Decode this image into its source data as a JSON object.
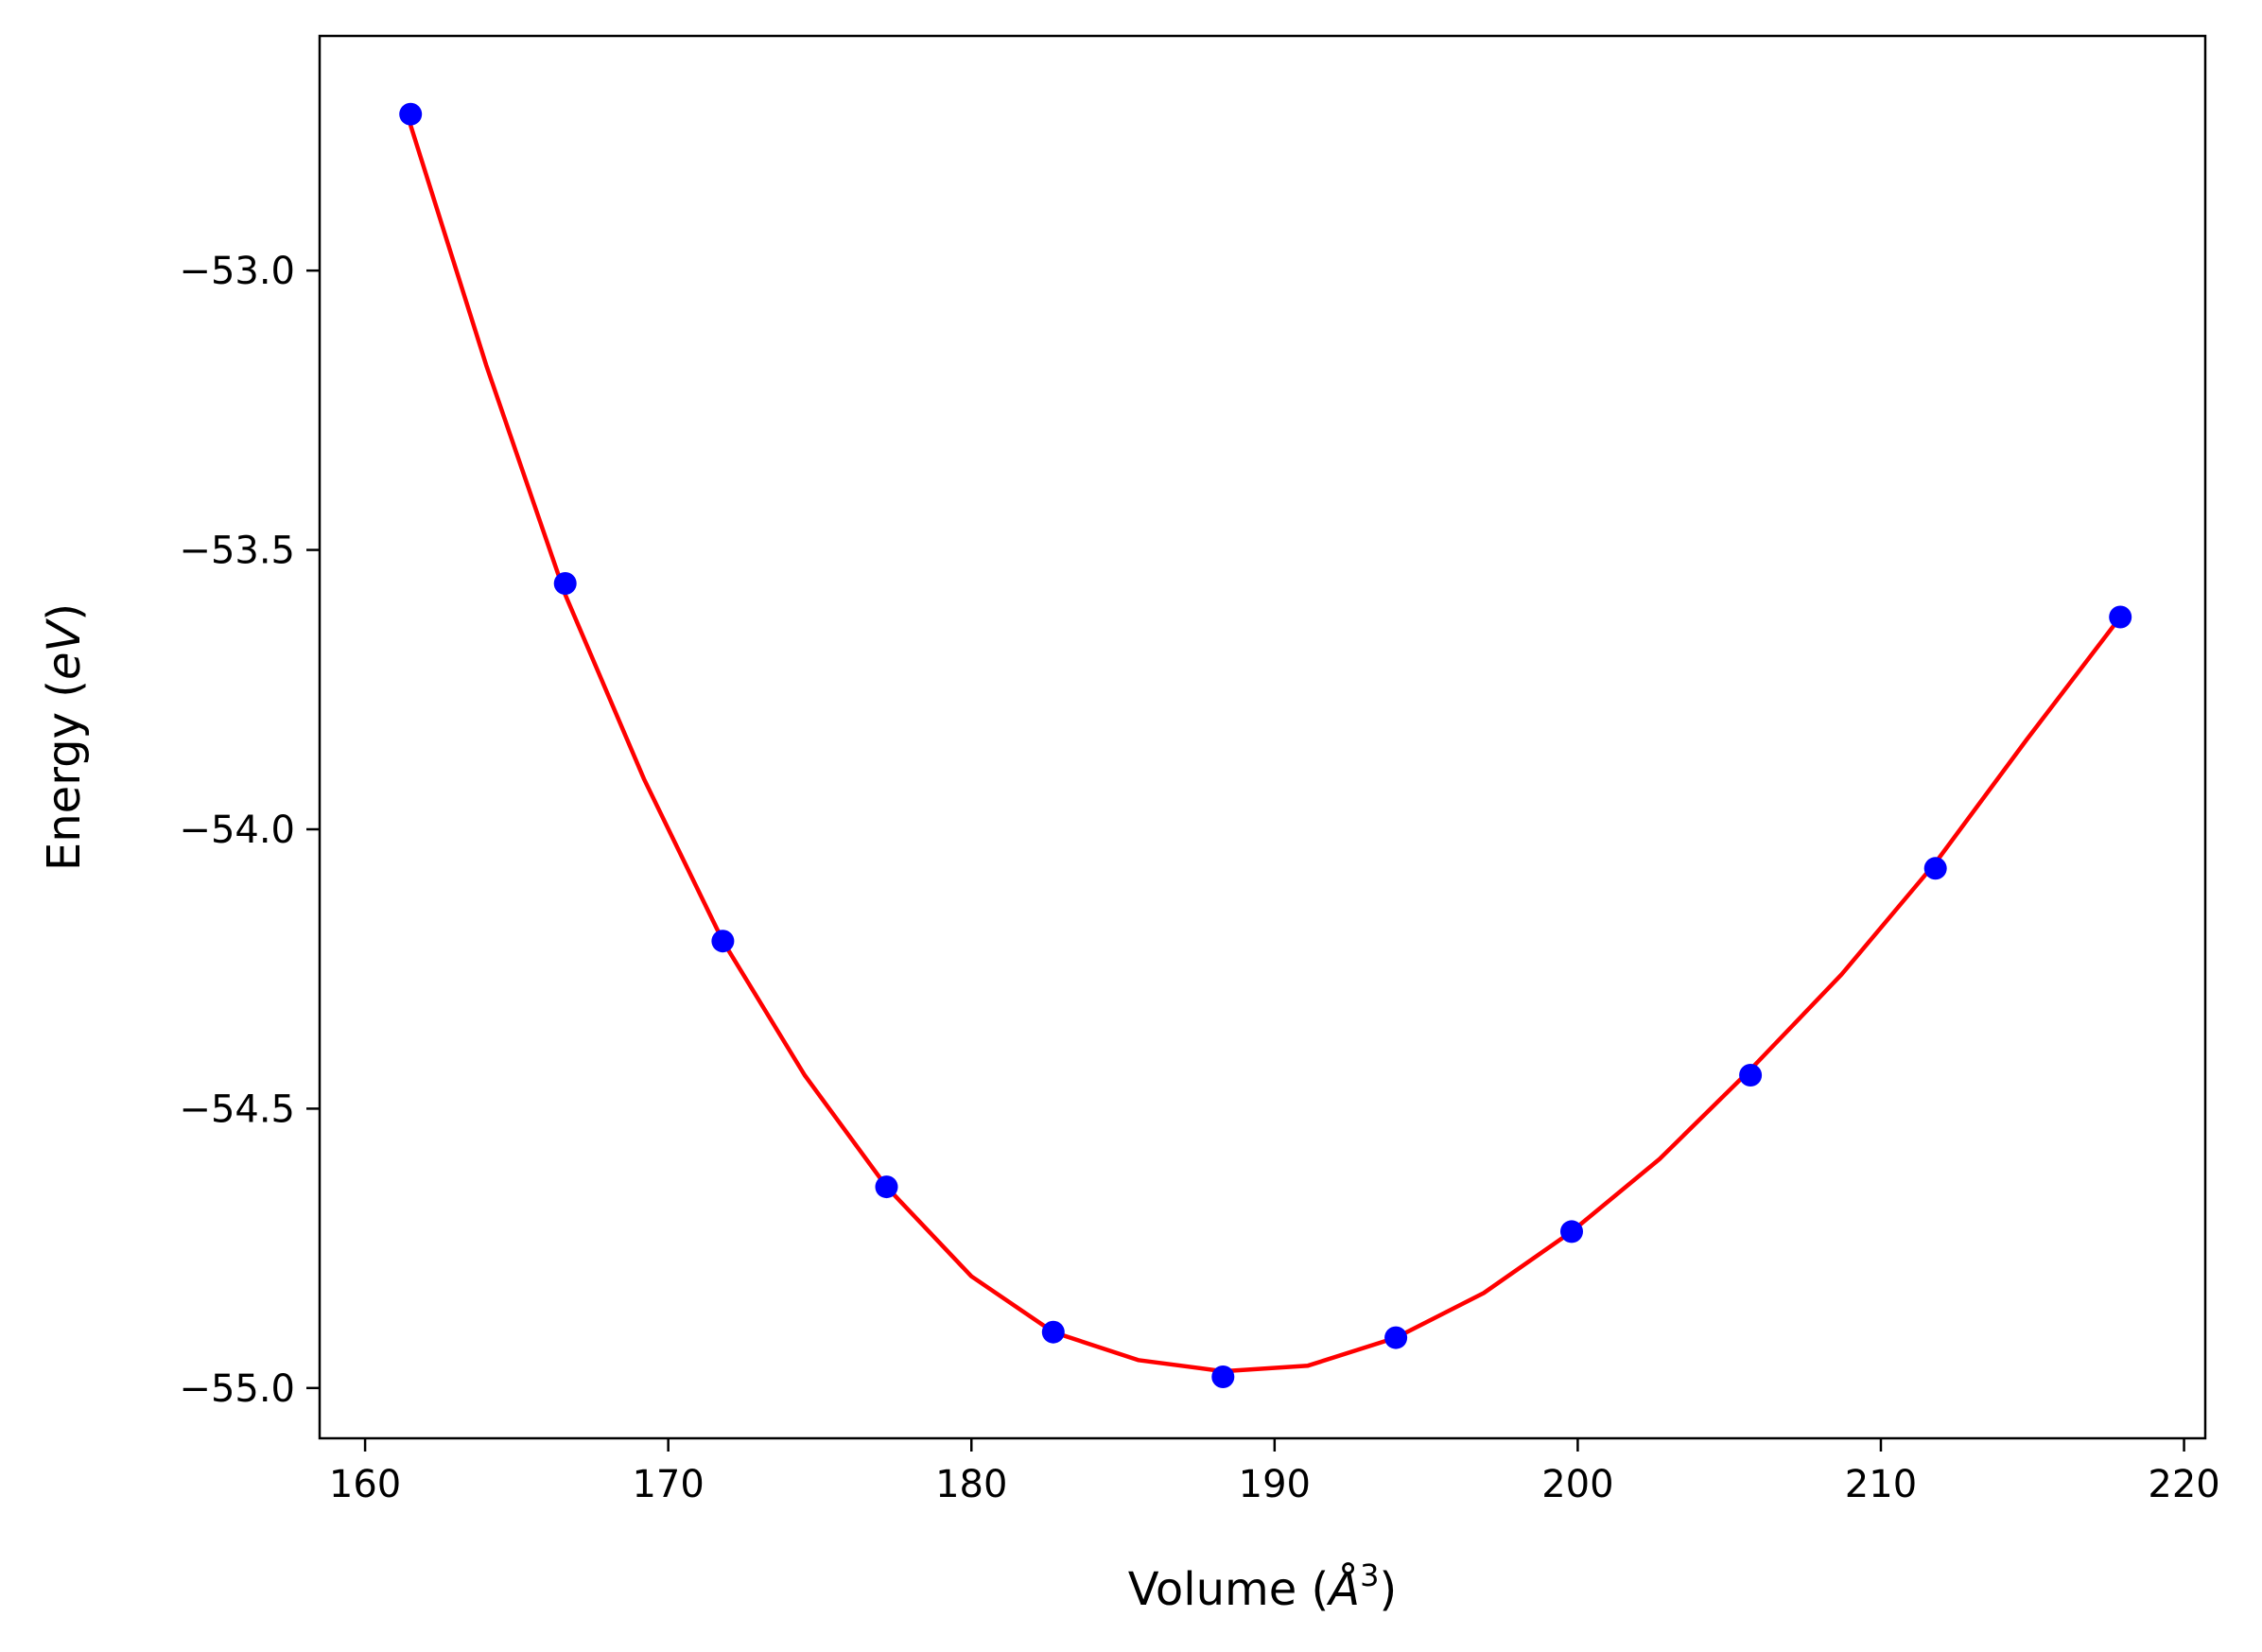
{
  "chart_data": {
    "type": "scatter",
    "title": "",
    "xlabel": "Volume (",
    "xlabel_symbol": "Å",
    "xlabel_exp": "3",
    "xlabel_close": ")",
    "ylabel": "Energy (",
    "ylabel_symbol": "eV",
    "ylabel_close": ")",
    "xlim": [
      158.5,
      220.7
    ],
    "ylim": [
      -55.09,
      -52.58
    ],
    "xticks": [
      160,
      170,
      180,
      190,
      200,
      210,
      220
    ],
    "xtick_labels": [
      "160",
      "170",
      "180",
      "190",
      "200",
      "210",
      "220"
    ],
    "yticks": [
      -53.0,
      -53.5,
      -54.0,
      -54.5,
      -55.0
    ],
    "ytick_labels": [
      "−53.0",
      "−53.5",
      "−54.0",
      "−54.5",
      "−55.0"
    ],
    "grid": false,
    "series": [
      {
        "kind": "points",
        "color": "#0000ff",
        "x": [
          161.5,
          166.6,
          171.8,
          177.2,
          182.7,
          188.3,
          194.0,
          199.8,
          205.7,
          211.8,
          217.9
        ],
        "y": [
          -52.72,
          -53.56,
          -54.2,
          -54.64,
          -54.9,
          -54.98,
          -54.91,
          -54.72,
          -54.44,
          -54.07,
          -53.62
        ]
      },
      {
        "kind": "fit-line",
        "color": "#ff0000",
        "x": [
          161.5,
          164.0,
          166.6,
          169.2,
          171.8,
          174.5,
          177.2,
          180.0,
          182.7,
          185.5,
          188.3,
          191.1,
          194.0,
          196.9,
          199.8,
          202.7,
          205.7,
          208.7,
          211.8,
          214.8,
          217.9
        ],
        "y": [
          -52.74,
          -53.17,
          -53.58,
          -53.91,
          -54.2,
          -54.44,
          -54.64,
          -54.8,
          -54.9,
          -54.95,
          -54.97,
          -54.96,
          -54.91,
          -54.83,
          -54.72,
          -54.59,
          -54.43,
          -54.26,
          -54.06,
          -53.84,
          -53.62
        ]
      }
    ]
  }
}
